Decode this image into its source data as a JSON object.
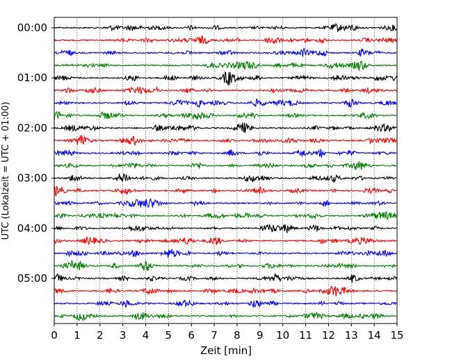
{
  "chart_data": {
    "type": "line",
    "title": "",
    "xlabel": "Zeit  [min]",
    "ylabel": "UTC (Lokalzeit = UTC + 01:00)",
    "xlim": [
      0,
      15
    ],
    "x_ticks": [
      0,
      1,
      2,
      3,
      4,
      5,
      6,
      7,
      8,
      9,
      10,
      11,
      12,
      13,
      14,
      15
    ],
    "y_tick_labels": [
      "00:00",
      "01:00",
      "02:00",
      "03:00",
      "04:00",
      "05:00"
    ],
    "row_interval_minutes": 15,
    "row_count": 24,
    "row_colors": [
      "#000000",
      "#ff0000",
      "#0000ff",
      "#007f00"
    ],
    "grid": "vertical dotted lines at each minute",
    "legend": "none"
  }
}
